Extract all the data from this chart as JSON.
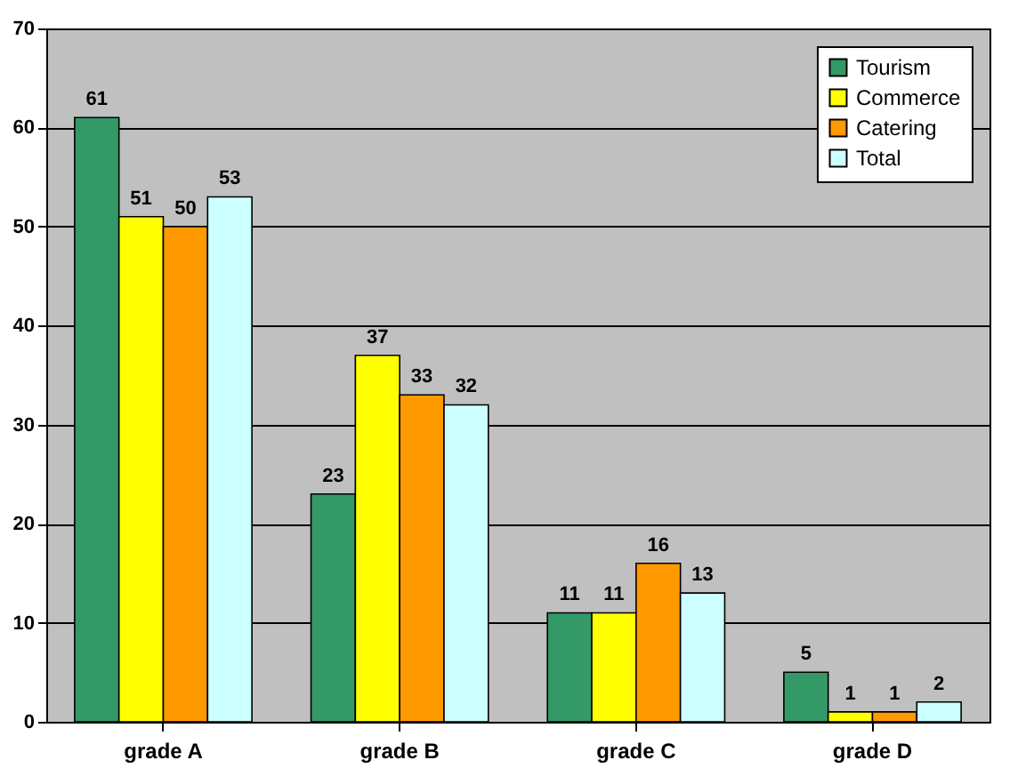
{
  "chart_data": {
    "type": "bar",
    "categories": [
      "grade A",
      "grade B",
      "grade C",
      "grade D"
    ],
    "series": [
      {
        "name": "Tourism",
        "color": "#339966",
        "values": [
          61,
          23,
          11,
          5
        ]
      },
      {
        "name": "Commerce",
        "color": "#ffff00",
        "values": [
          51,
          37,
          11,
          1
        ]
      },
      {
        "name": "Catering",
        "color": "#ff9900",
        "values": [
          50,
          33,
          16,
          1
        ]
      },
      {
        "name": "Total",
        "color": "#ccffff",
        "values": [
          53,
          32,
          13,
          2
        ]
      }
    ],
    "ylim": [
      0,
      70
    ],
    "yticks": [
      0,
      10,
      20,
      30,
      40,
      50,
      60,
      70
    ],
    "grid": "y",
    "legend": "top right",
    "data_labels": true
  }
}
